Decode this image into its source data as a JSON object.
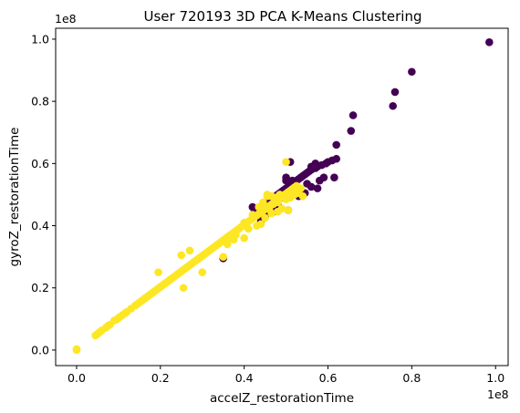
{
  "chart_data": {
    "type": "scatter",
    "title": "User 720193 3D PCA K-Means Clustering",
    "xlabel": "accelZ_restorationTime",
    "ylabel": "gyroZ_restorationTime",
    "x_offset_label": "1e8",
    "y_offset_label": "1e8",
    "xlim": [
      -0.05,
      1.03
    ],
    "ylim": [
      -0.05,
      1.035
    ],
    "x_ticks": [
      0.0,
      0.2,
      0.4,
      0.6,
      0.8,
      1.0
    ],
    "x_tick_labels": [
      "0.0",
      "0.2",
      "0.4",
      "0.6",
      "0.8",
      "1.0"
    ],
    "y_ticks": [
      0.0,
      0.2,
      0.4,
      0.6,
      0.8,
      1.0
    ],
    "y_tick_labels": [
      "0.0",
      "0.2",
      "0.4",
      "0.6",
      "0.8",
      "1.0"
    ],
    "grid": false,
    "legend": "none",
    "series": [
      {
        "color": "#440154",
        "points": [
          [
            0.985,
            0.99
          ],
          [
            0.8,
            0.895
          ],
          [
            0.76,
            0.83
          ],
          [
            0.755,
            0.785
          ],
          [
            0.66,
            0.755
          ],
          [
            0.655,
            0.705
          ],
          [
            0.62,
            0.66
          ],
          [
            0.51,
            0.605
          ],
          [
            0.62,
            0.615
          ],
          [
            0.61,
            0.61
          ],
          [
            0.6,
            0.605
          ],
          [
            0.595,
            0.6
          ],
          [
            0.585,
            0.595
          ],
          [
            0.575,
            0.59
          ],
          [
            0.57,
            0.585
          ],
          [
            0.56,
            0.58
          ],
          [
            0.555,
            0.575
          ],
          [
            0.55,
            0.57
          ],
          [
            0.545,
            0.565
          ],
          [
            0.54,
            0.56
          ],
          [
            0.535,
            0.555
          ],
          [
            0.53,
            0.55
          ],
          [
            0.525,
            0.545
          ],
          [
            0.52,
            0.54
          ],
          [
            0.515,
            0.535
          ],
          [
            0.51,
            0.53
          ],
          [
            0.505,
            0.525
          ],
          [
            0.5,
            0.52
          ],
          [
            0.495,
            0.515
          ],
          [
            0.49,
            0.51
          ],
          [
            0.485,
            0.505
          ],
          [
            0.48,
            0.5
          ],
          [
            0.475,
            0.495
          ],
          [
            0.47,
            0.49
          ],
          [
            0.465,
            0.485
          ],
          [
            0.46,
            0.48
          ],
          [
            0.455,
            0.475
          ],
          [
            0.45,
            0.47
          ],
          [
            0.445,
            0.465
          ],
          [
            0.44,
            0.46
          ],
          [
            0.435,
            0.455
          ],
          [
            0.43,
            0.45
          ],
          [
            0.44,
            0.44
          ],
          [
            0.45,
            0.45
          ],
          [
            0.46,
            0.46
          ],
          [
            0.45,
            0.43
          ],
          [
            0.47,
            0.445
          ],
          [
            0.445,
            0.425
          ],
          [
            0.5,
            0.555
          ],
          [
            0.5,
            0.545
          ],
          [
            0.57,
            0.6
          ],
          [
            0.56,
            0.59
          ],
          [
            0.55,
            0.535
          ],
          [
            0.56,
            0.525
          ],
          [
            0.575,
            0.52
          ],
          [
            0.615,
            0.555
          ],
          [
            0.59,
            0.555
          ],
          [
            0.58,
            0.545
          ],
          [
            0.51,
            0.52
          ],
          [
            0.515,
            0.545
          ],
          [
            0.52,
            0.51
          ],
          [
            0.525,
            0.5
          ],
          [
            0.53,
            0.495
          ],
          [
            0.545,
            0.505
          ],
          [
            0.5,
            0.51
          ],
          [
            0.49,
            0.49
          ],
          [
            0.35,
            0.295
          ],
          [
            0.44,
            0.415
          ],
          [
            0.455,
            0.44
          ],
          [
            0.48,
            0.465
          ],
          [
            0.505,
            0.45
          ],
          [
            0.42,
            0.46
          ],
          [
            0.425,
            0.445
          ]
        ]
      },
      {
        "color": "#fde725",
        "points": [
          [
            0.0,
            0.0
          ],
          [
            0.0,
            0.003
          ],
          [
            0.045,
            0.047
          ],
          [
            0.05,
            0.052
          ],
          [
            0.055,
            0.058
          ],
          [
            0.06,
            0.063
          ],
          [
            0.07,
            0.072
          ],
          [
            0.075,
            0.078
          ],
          [
            0.08,
            0.082
          ],
          [
            0.09,
            0.095
          ],
          [
            0.095,
            0.098
          ],
          [
            0.1,
            0.103
          ],
          [
            0.105,
            0.108
          ],
          [
            0.11,
            0.113
          ],
          [
            0.115,
            0.118
          ],
          [
            0.12,
            0.123
          ],
          [
            0.13,
            0.133
          ],
          [
            0.14,
            0.143
          ],
          [
            0.145,
            0.148
          ],
          [
            0.15,
            0.153
          ],
          [
            0.155,
            0.158
          ],
          [
            0.16,
            0.163
          ],
          [
            0.165,
            0.168
          ],
          [
            0.17,
            0.173
          ],
          [
            0.175,
            0.178
          ],
          [
            0.18,
            0.183
          ],
          [
            0.185,
            0.188
          ],
          [
            0.19,
            0.193
          ],
          [
            0.195,
            0.198
          ],
          [
            0.2,
            0.203
          ],
          [
            0.205,
            0.208
          ],
          [
            0.21,
            0.213
          ],
          [
            0.215,
            0.218
          ],
          [
            0.22,
            0.223
          ],
          [
            0.225,
            0.228
          ],
          [
            0.23,
            0.233
          ],
          [
            0.235,
            0.238
          ],
          [
            0.24,
            0.243
          ],
          [
            0.245,
            0.248
          ],
          [
            0.25,
            0.253
          ],
          [
            0.255,
            0.258
          ],
          [
            0.26,
            0.263
          ],
          [
            0.265,
            0.268
          ],
          [
            0.27,
            0.273
          ],
          [
            0.275,
            0.278
          ],
          [
            0.28,
            0.283
          ],
          [
            0.285,
            0.288
          ],
          [
            0.29,
            0.293
          ],
          [
            0.295,
            0.298
          ],
          [
            0.3,
            0.303
          ],
          [
            0.305,
            0.308
          ],
          [
            0.31,
            0.313
          ],
          [
            0.315,
            0.318
          ],
          [
            0.32,
            0.323
          ],
          [
            0.325,
            0.328
          ],
          [
            0.33,
            0.333
          ],
          [
            0.335,
            0.338
          ],
          [
            0.34,
            0.343
          ],
          [
            0.345,
            0.348
          ],
          [
            0.35,
            0.353
          ],
          [
            0.355,
            0.358
          ],
          [
            0.36,
            0.363
          ],
          [
            0.365,
            0.368
          ],
          [
            0.37,
            0.373
          ],
          [
            0.375,
            0.378
          ],
          [
            0.38,
            0.383
          ],
          [
            0.385,
            0.388
          ],
          [
            0.39,
            0.393
          ],
          [
            0.395,
            0.398
          ],
          [
            0.4,
            0.403
          ],
          [
            0.405,
            0.408
          ],
          [
            0.41,
            0.413
          ],
          [
            0.415,
            0.418
          ],
          [
            0.42,
            0.423
          ],
          [
            0.425,
            0.428
          ],
          [
            0.43,
            0.433
          ],
          [
            0.435,
            0.438
          ],
          [
            0.44,
            0.443
          ],
          [
            0.445,
            0.448
          ],
          [
            0.45,
            0.453
          ],
          [
            0.455,
            0.458
          ],
          [
            0.46,
            0.463
          ],
          [
            0.465,
            0.468
          ],
          [
            0.47,
            0.473
          ],
          [
            0.475,
            0.478
          ],
          [
            0.48,
            0.483
          ],
          [
            0.485,
            0.488
          ],
          [
            0.49,
            0.493
          ],
          [
            0.495,
            0.498
          ],
          [
            0.5,
            0.503
          ],
          [
            0.505,
            0.508
          ],
          [
            0.51,
            0.513
          ],
          [
            0.515,
            0.518
          ],
          [
            0.52,
            0.523
          ],
          [
            0.525,
            0.528
          ],
          [
            0.195,
            0.25
          ],
          [
            0.255,
            0.2
          ],
          [
            0.25,
            0.305
          ],
          [
            0.27,
            0.32
          ],
          [
            0.3,
            0.25
          ],
          [
            0.35,
            0.3
          ],
          [
            0.36,
            0.34
          ],
          [
            0.375,
            0.355
          ],
          [
            0.4,
            0.36
          ],
          [
            0.4,
            0.41
          ],
          [
            0.42,
            0.435
          ],
          [
            0.435,
            0.46
          ],
          [
            0.445,
            0.475
          ],
          [
            0.455,
            0.495
          ],
          [
            0.455,
            0.5
          ],
          [
            0.465,
            0.495
          ],
          [
            0.475,
            0.49
          ],
          [
            0.485,
            0.5
          ],
          [
            0.5,
            0.605
          ],
          [
            0.505,
            0.45
          ],
          [
            0.52,
            0.5
          ],
          [
            0.54,
            0.495
          ],
          [
            0.44,
            0.405
          ],
          [
            0.43,
            0.4
          ],
          [
            0.49,
            0.455
          ],
          [
            0.47,
            0.47
          ],
          [
            0.46,
            0.455
          ],
          [
            0.48,
            0.475
          ],
          [
            0.5,
            0.485
          ],
          [
            0.51,
            0.49
          ],
          [
            0.515,
            0.5
          ],
          [
            0.525,
            0.51
          ],
          [
            0.535,
            0.52
          ],
          [
            0.53,
            0.505
          ],
          [
            0.48,
            0.445
          ],
          [
            0.465,
            0.44
          ],
          [
            0.45,
            0.425
          ],
          [
            0.38,
            0.37
          ],
          [
            0.37,
            0.36
          ],
          [
            0.41,
            0.39
          ]
        ]
      }
    ]
  }
}
